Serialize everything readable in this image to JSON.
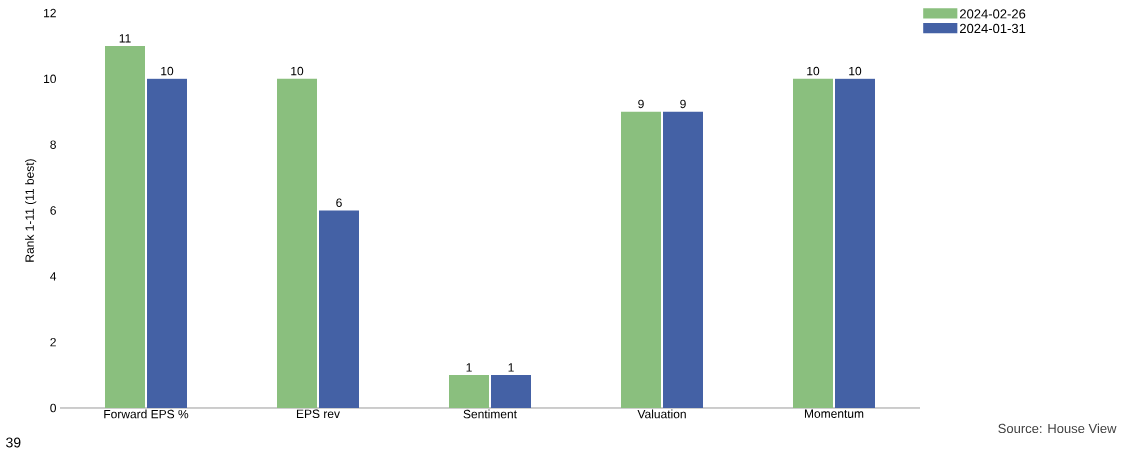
{
  "chart_data": {
    "type": "bar",
    "ylabel": "Rank 1-11 (11 best)",
    "categories": [
      "Forward EPS %",
      "EPS rev",
      "Sentiment",
      "Valuation",
      "Momentum"
    ],
    "series": [
      {
        "name": "2024-02-26",
        "color": "#8abf7e",
        "values": [
          11,
          10,
          1,
          9,
          10
        ]
      },
      {
        "name": "2024-01-31",
        "color": "#4461a5",
        "values": [
          10,
          6,
          1,
          9,
          10
        ]
      }
    ],
    "ylim": [
      0,
      12
    ],
    "yticks": [
      0,
      2,
      4,
      6,
      8,
      10,
      12
    ],
    "grid": false,
    "legend": "top right",
    "data_labels": true,
    "annotations": [
      "39",
      "Source: House View"
    ]
  }
}
